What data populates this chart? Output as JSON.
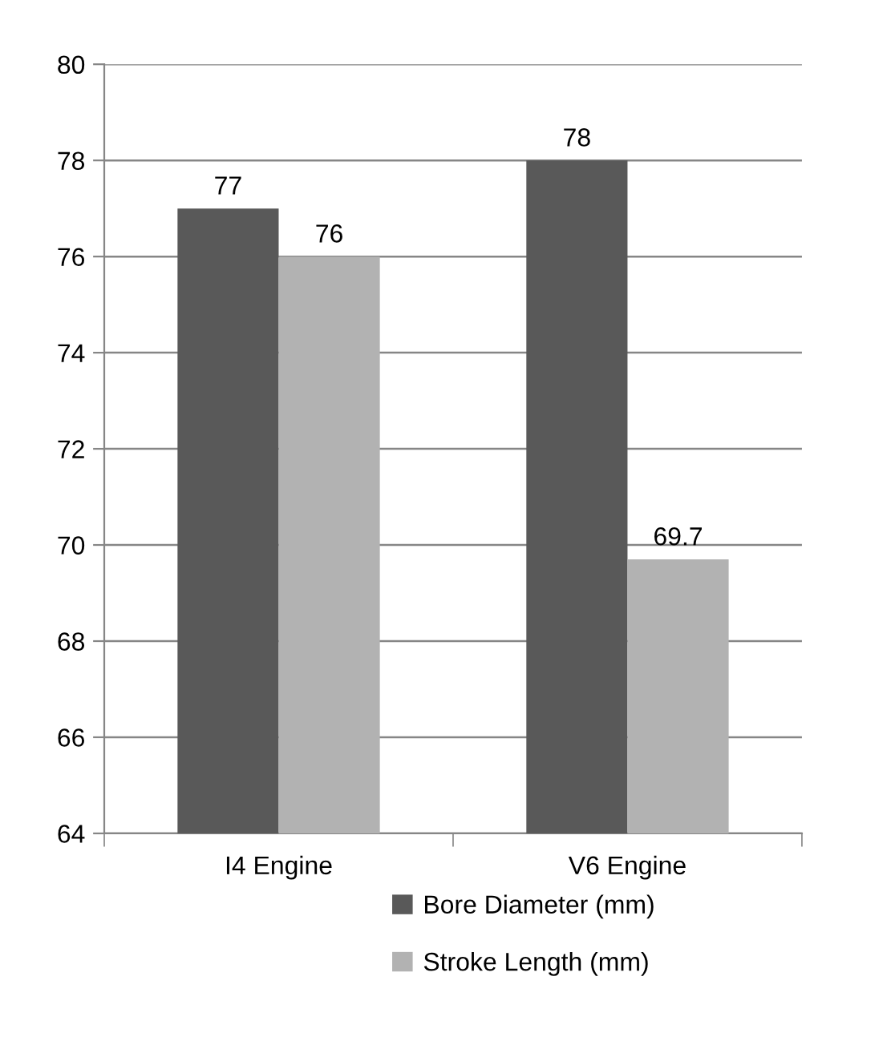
{
  "chart_data": {
    "type": "bar",
    "categories": [
      "I4 Engine",
      "V6 Engine"
    ],
    "series": [
      {
        "name": "Bore Diameter (mm)",
        "color": "#595959",
        "values": [
          77,
          78
        ]
      },
      {
        "name": "Stroke Length (mm)",
        "color": "#b2b2b2",
        "values": [
          76,
          69.7
        ]
      }
    ],
    "ylim": [
      64,
      80
    ],
    "yticks": [
      64,
      66,
      68,
      70,
      72,
      74,
      76,
      78,
      80
    ],
    "grid": "y",
    "legend": "bottom",
    "data_labels": true
  }
}
